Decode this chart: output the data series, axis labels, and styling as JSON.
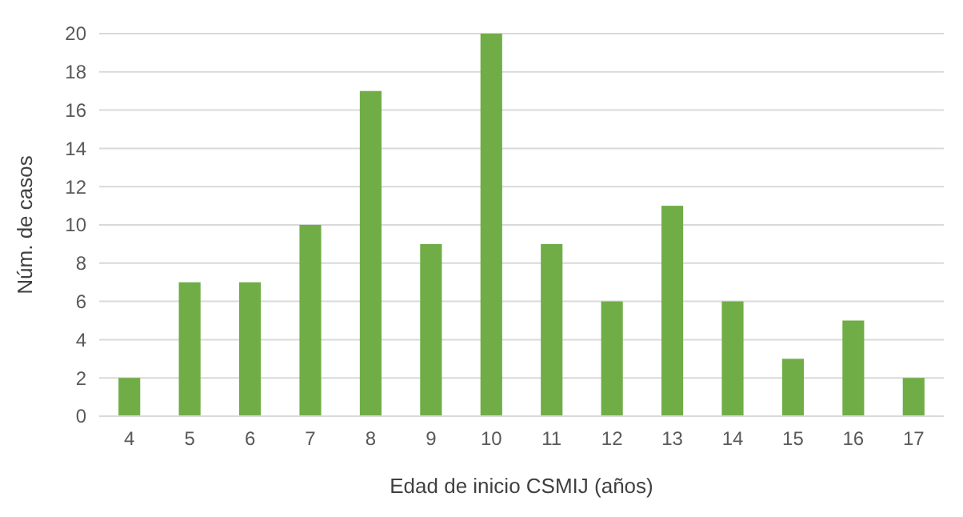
{
  "chart_data": {
    "type": "bar",
    "xlabel": "Edad de inicio CSMIJ (años)",
    "ylabel": "Núm. de casos",
    "categories": [
      "4",
      "5",
      "6",
      "7",
      "8",
      "9",
      "10",
      "11",
      "12",
      "13",
      "14",
      "15",
      "16",
      "17"
    ],
    "values": [
      2,
      7,
      7,
      10,
      17,
      9,
      20,
      9,
      6,
      11,
      6,
      3,
      5,
      2
    ],
    "color": "#70ad47",
    "ylim": [
      0,
      20
    ],
    "yticks": [
      0,
      2,
      4,
      6,
      8,
      10,
      12,
      14,
      16,
      18,
      20
    ],
    "grid": "y"
  }
}
